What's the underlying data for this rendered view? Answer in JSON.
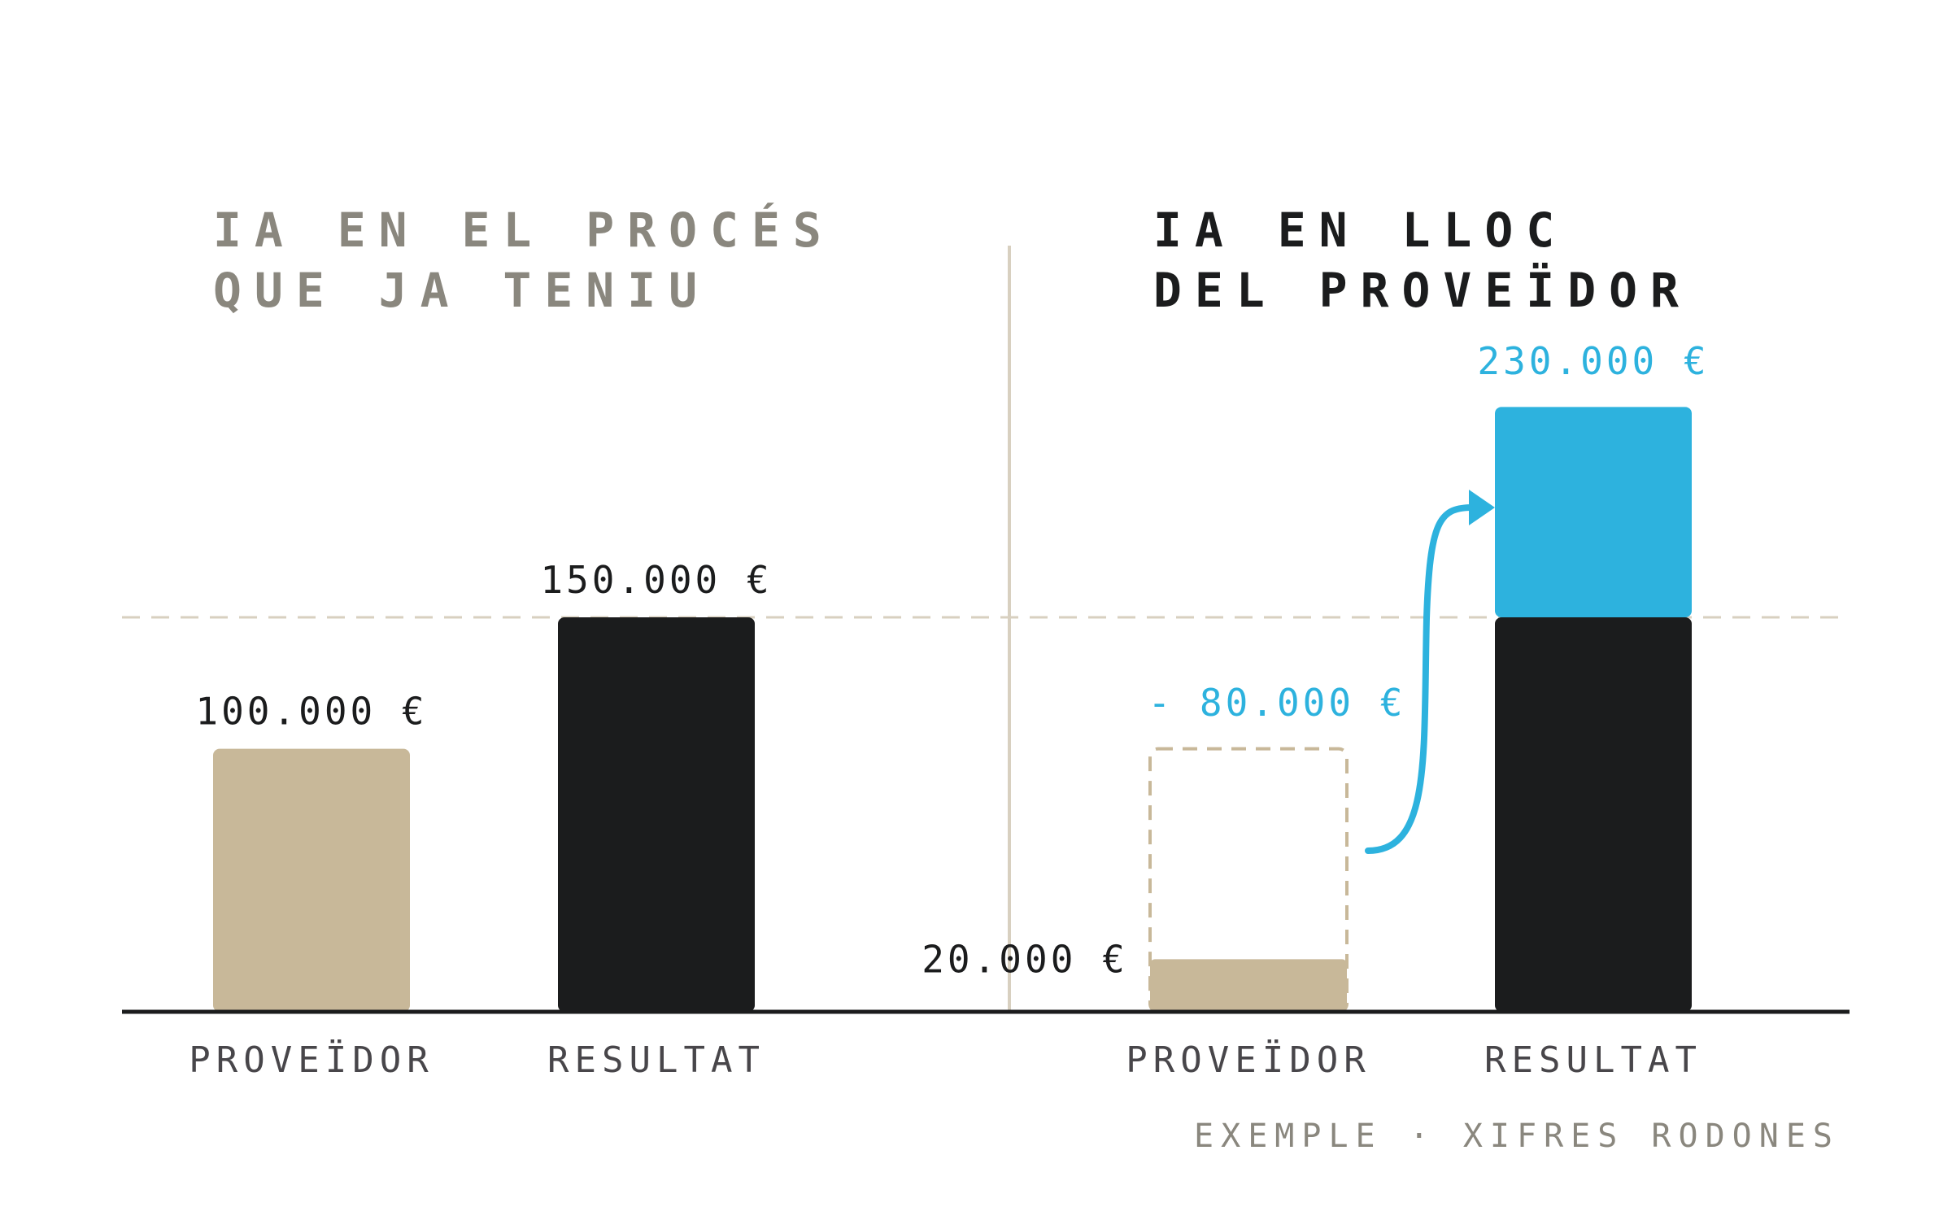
{
  "panels": {
    "left": {
      "title_lines": [
        "IA EN EL PROCÉS",
        "QUE JA TENIU"
      ]
    },
    "right": {
      "title_lines": [
        "IA EN LLOC",
        "DEL PROVEÏDOR"
      ]
    }
  },
  "footer": "EXEMPLE · XIFRES RODONES",
  "colors": {
    "provider": "#c8b899",
    "result": "#1b1c1d",
    "gain": "#2db2de",
    "axis": "#1b1c1d",
    "reference_line": "#d8d0c0",
    "divider": "#d8d0c0",
    "muted_text": "#8a877e"
  },
  "chart_data": [
    {
      "type": "bar",
      "title": "IA EN EL PROCÉS QUE JA TENIU",
      "categories": [
        "PROVEÏDOR",
        "RESULTAT"
      ],
      "values": [
        100000,
        150000
      ],
      "data_labels": [
        "100.000 €",
        "150.000 €"
      ],
      "ylim": [
        0,
        230000
      ],
      "reference_value": 150000
    },
    {
      "type": "bar",
      "title": "IA EN LLOC DEL PROVEÏDOR",
      "categories": [
        "PROVEÏDOR",
        "RESULTAT"
      ],
      "values": [
        20000,
        230000
      ],
      "previous_provider_value": 100000,
      "savings_value": 80000,
      "result_base_value": 150000,
      "result_gain_value": 80000,
      "data_labels": [
        "20.000 €",
        "230.000 €"
      ],
      "savings_label": "- 80.000 €",
      "ylim": [
        0,
        230000
      ],
      "reference_value": 150000
    }
  ]
}
